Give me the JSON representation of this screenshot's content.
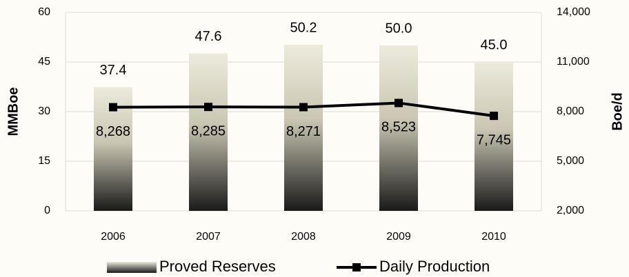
{
  "chart_data": {
    "type": "bar",
    "categories": [
      "2006",
      "2007",
      "2008",
      "2009",
      "2010"
    ],
    "series": [
      {
        "name": "Proved Reserves",
        "type": "bar",
        "color": "#1a1a1a",
        "axis": "y",
        "values": [
          37.4,
          47.6,
          50.2,
          50.0,
          45.0
        ],
        "value_labels": [
          "37.4",
          "47.6",
          "50.2",
          "50.0",
          "45.0"
        ]
      },
      {
        "name": "Daily Production",
        "type": "line",
        "color": "#000000",
        "axis": "y2",
        "values": [
          8268,
          8285,
          8271,
          8523,
          7745
        ],
        "value_labels": [
          "8,268",
          "8,285",
          "8,271",
          "8,523",
          "7,745"
        ]
      }
    ],
    "ylabel": "MMBoe",
    "y2label": "Boe/d",
    "ylim": [
      0,
      60
    ],
    "yticks": [
      0,
      15,
      30,
      45,
      60
    ],
    "y2lim": [
      2000,
      14000
    ],
    "y2ticks": [
      {
        "value": 2000,
        "label": "2,000"
      },
      {
        "value": 5000,
        "label": "5,000"
      },
      {
        "value": 8000,
        "label": "8,000"
      },
      {
        "value": 11000,
        "label": "11,000"
      },
      {
        "value": 14000,
        "label": "14,000"
      }
    ],
    "grid": true,
    "legend": "bottom"
  }
}
